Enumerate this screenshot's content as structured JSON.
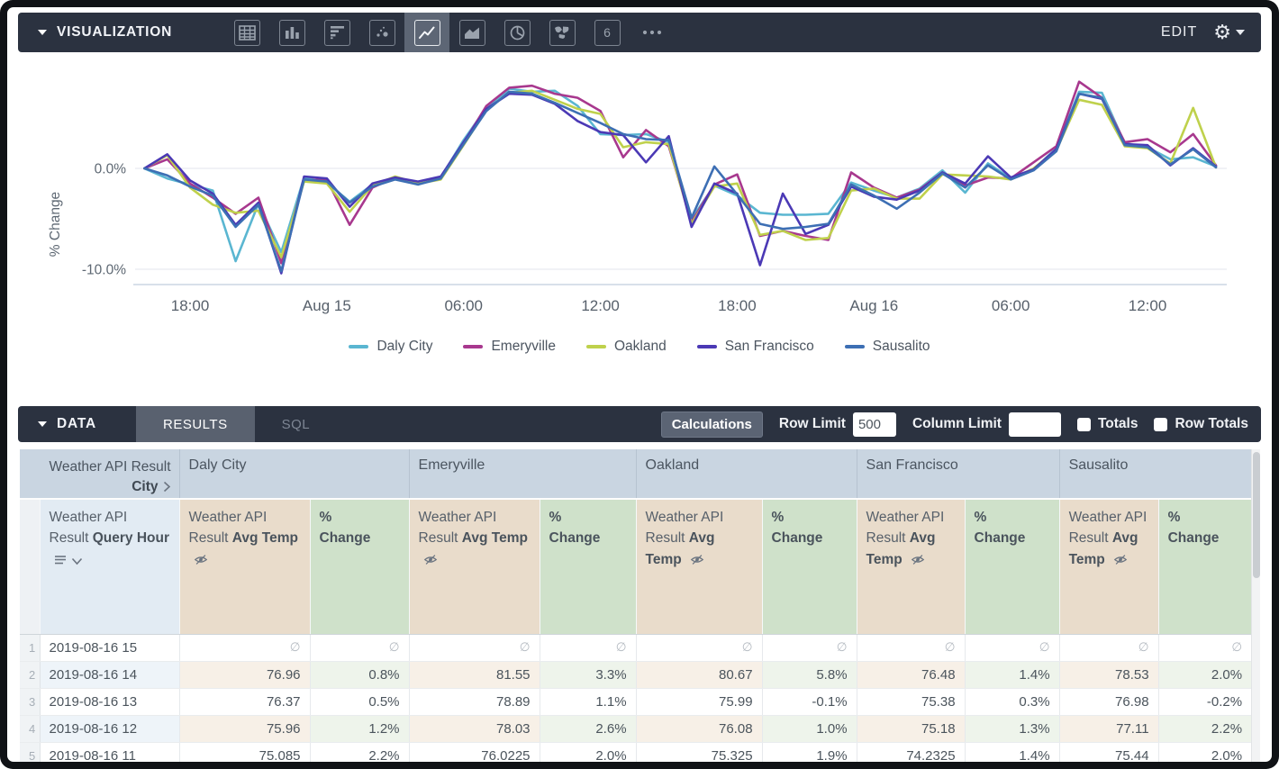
{
  "viz_bar": {
    "title": "VISUALIZATION",
    "tools": [
      "table",
      "column-chart",
      "bar-chart",
      "scatter",
      "line-chart",
      "area-chart",
      "pie-chart",
      "map",
      "single-value",
      "more"
    ],
    "active_tool": "line-chart",
    "single_value_glyph": "6",
    "edit_label": "EDIT"
  },
  "chart_data": {
    "type": "line",
    "ylabel": "% Change",
    "ylim": [
      -11.5,
      9.5
    ],
    "grid": true,
    "legend_position": "bottom",
    "y_ticks": [
      {
        "value": 0,
        "label": "0.0%"
      },
      {
        "value": -10,
        "label": "-10.0%"
      }
    ],
    "x_ticks": [
      {
        "index": 2,
        "label": "18:00"
      },
      {
        "index": 8,
        "label": "Aug 15"
      },
      {
        "index": 14,
        "label": "06:00"
      },
      {
        "index": 20,
        "label": "12:00"
      },
      {
        "index": 26,
        "label": "18:00"
      },
      {
        "index": 32,
        "label": "Aug 16"
      },
      {
        "index": 38,
        "label": "06:00"
      },
      {
        "index": 44,
        "label": "12:00"
      }
    ],
    "points_per_series": 48,
    "series": [
      {
        "name": "Daly City",
        "color": "#5ab6d1",
        "values": [
          0,
          -1,
          -1.6,
          -2.2,
          -9.2,
          -3.5,
          -8.3,
          -0.9,
          -1.4,
          -3.3,
          -1.6,
          -1,
          -1.6,
          -0.9,
          2.8,
          6,
          7.9,
          7.6,
          7.7,
          6.2,
          3.4,
          3.3,
          3.4,
          2.6,
          -5,
          -1.7,
          -2.7,
          -4.4,
          -4.6,
          -4.6,
          -4.5,
          -1.4,
          -2.2,
          -2.9,
          -2,
          -0.2,
          -2.4,
          0.5,
          -1,
          -0.1,
          2,
          7.6,
          7.5,
          2.5,
          2.1,
          0.9,
          1.1,
          0.2
        ]
      },
      {
        "name": "Emeryville",
        "color": "#a8388e",
        "values": [
          0,
          0.9,
          -1.5,
          -2.9,
          -4.5,
          -2.9,
          -9.4,
          -1.2,
          -1.1,
          -5.6,
          -1.9,
          -0.9,
          -1.4,
          -1,
          2.5,
          6.2,
          8,
          8.2,
          7.4,
          7,
          5.7,
          1.1,
          3.8,
          2.2,
          -5.3,
          -1.6,
          -0.6,
          -6.7,
          -6.2,
          -6.7,
          -7.1,
          -0.4,
          -1.9,
          -2.9,
          -2.1,
          -0.4,
          -1.7,
          -0.9,
          -1,
          0.6,
          2.2,
          8.6,
          7,
          2.6,
          2.9,
          1.6,
          3.4,
          0.3
        ]
      },
      {
        "name": "Oakland",
        "color": "#bfd14c",
        "values": [
          0,
          1.3,
          -1.9,
          -3.6,
          -4.4,
          -4.2,
          -8.8,
          -1.3,
          -1.5,
          -4.3,
          -1.7,
          -0.8,
          -1.5,
          -1.1,
          2.3,
          5.8,
          7.5,
          7.7,
          6.8,
          5.9,
          5.4,
          2.1,
          2.6,
          2.4,
          -5.5,
          -1.8,
          -1.5,
          -6.6,
          -6.2,
          -7.1,
          -6.9,
          -2.2,
          -2,
          -3,
          -3,
          -0.6,
          -0.7,
          -0.8,
          -1.1,
          0,
          1.8,
          6.8,
          6.3,
          2.2,
          2,
          0.5,
          6,
          0.1
        ]
      },
      {
        "name": "San Francisco",
        "color": "#4b39b5",
        "values": [
          0,
          1.4,
          -1.2,
          -2.5,
          -5.6,
          -3.4,
          -10.4,
          -0.8,
          -1,
          -3.8,
          -1.5,
          -0.9,
          -1.3,
          -0.8,
          2.6,
          5.9,
          7.4,
          7.3,
          6.4,
          4.7,
          3.6,
          3.3,
          0.6,
          3.2,
          -5.8,
          -1.5,
          -2.5,
          -9.6,
          -2.5,
          -6.5,
          -5.6,
          -1.8,
          -2.8,
          -3.1,
          -2.2,
          -0.4,
          -1.5,
          1.2,
          -0.9,
          -0.1,
          1.9,
          7.4,
          6.9,
          2.4,
          2.3,
          0.3,
          2,
          0.2
        ]
      },
      {
        "name": "Sausalito",
        "color": "#3d6fb4",
        "values": [
          0,
          -0.7,
          -1.8,
          -2.7,
          -5.8,
          -3.6,
          -10.2,
          -1.1,
          -1.3,
          -3.4,
          -1.8,
          -1.1,
          -1.6,
          -1,
          2.4,
          5.7,
          7.6,
          7.4,
          6.5,
          5.5,
          4.5,
          3.4,
          2.9,
          2.8,
          -4.9,
          0.2,
          -2.6,
          -5.5,
          -6,
          -5.8,
          -5.5,
          -1.6,
          -2.7,
          -4,
          -2.4,
          -0.5,
          -1.9,
          0.3,
          -1.1,
          -0.2,
          1.7,
          7.4,
          7,
          2.3,
          2.1,
          0.4,
          1.9,
          0.1
        ]
      }
    ]
  },
  "data_bar": {
    "title": "DATA",
    "tabs": [
      {
        "label": "RESULTS",
        "active": true
      },
      {
        "label": "SQL",
        "active": false
      }
    ],
    "calculations_label": "Calculations",
    "row_limit_label": "Row Limit",
    "row_limit_value": "500",
    "column_limit_label": "Column Limit",
    "column_limit_value": "",
    "totals_label": "Totals",
    "row_totals_label": "Row Totals",
    "totals_checked": false,
    "row_totals_checked": false
  },
  "table": {
    "corner": {
      "prefix": "Weather API Result",
      "field": "City"
    },
    "hour_header": {
      "prefix": "Weather API Result",
      "field": "Query Hour"
    },
    "measure_header": {
      "prefix": "Weather API Result",
      "field": "Avg Temp"
    },
    "pct_header": "% Change",
    "cities": [
      "Daly City",
      "Emeryville",
      "Oakland",
      "San Francisco",
      "Sausalito"
    ],
    "null_symbol": "∅",
    "rows": [
      {
        "num": "1",
        "hour": "2019-08-16 15",
        "cells": [
          null,
          null,
          null,
          null,
          null,
          null,
          null,
          null,
          null,
          null
        ]
      },
      {
        "num": "2",
        "hour": "2019-08-16 14",
        "cells": [
          "76.96",
          "0.8%",
          "81.55",
          "3.3%",
          "80.67",
          "5.8%",
          "76.48",
          "1.4%",
          "78.53",
          "2.0%"
        ]
      },
      {
        "num": "3",
        "hour": "2019-08-16 13",
        "cells": [
          "76.37",
          "0.5%",
          "78.89",
          "1.1%",
          "75.99",
          "-0.1%",
          "75.38",
          "0.3%",
          "76.98",
          "-0.2%"
        ]
      },
      {
        "num": "4",
        "hour": "2019-08-16 12",
        "cells": [
          "75.96",
          "1.2%",
          "78.03",
          "2.6%",
          "76.08",
          "1.0%",
          "75.18",
          "1.3%",
          "77.11",
          "2.2%"
        ]
      },
      {
        "num": "5",
        "hour": "2019-08-16 11",
        "cells": [
          "75.085",
          "2.2%",
          "76.0225",
          "2.0%",
          "75.325",
          "1.9%",
          "74.2325",
          "1.4%",
          "75.44",
          "2.0%"
        ]
      }
    ]
  }
}
